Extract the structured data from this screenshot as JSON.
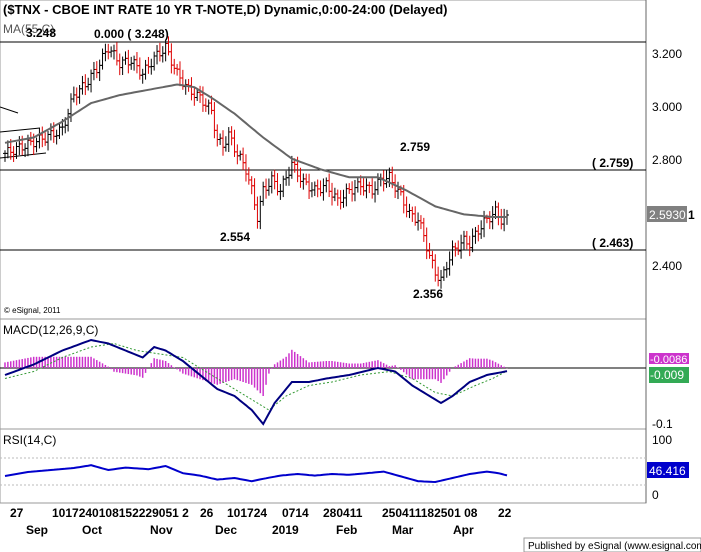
{
  "header": {
    "title": "($TNX - CBOE INT RATE 10 YR T-NOTE,D) Dynamic,0:00-24:00 (Delayed)",
    "ma_label": "MA(55,C)",
    "ma_value": "3.248"
  },
  "colors": {
    "up_bar": "#000000",
    "down_bar": "#dd0000",
    "ma_line": "#666666",
    "macd_line": "#000080",
    "signal_line": "#339933",
    "histogram": "#cc33cc",
    "rsi_line": "#0000cc",
    "price_tag_bg": "#808080",
    "macd_tag_bg": "#33aa55",
    "rsi_tag_bg": "#0000cc"
  },
  "annotations": {
    "top_label": "0.000 ( 3.248)",
    "high_2759": "2.759",
    "level_2759": "( 2.759)",
    "low_2554": "2.554",
    "level_2463": "( 2.463)",
    "low_2356": "2.356"
  },
  "price_axis": {
    "ticks": [
      "3.200",
      "3.000",
      "2.800",
      "2.400"
    ],
    "last_price": "2.5930",
    "last_price_suffix": "1"
  },
  "watermark": "© eSignal, 2011",
  "macd": {
    "label": "MACD(12,26,9,C)",
    "value_top": "-0.0086",
    "value": "-0.009",
    "tick": "-0.1"
  },
  "rsi": {
    "label": "RSI(14,C)",
    "value": "46.416",
    "tick_top": "100",
    "tick_bottom": "0"
  },
  "date_axis": {
    "days": [
      "27",
      "1017240108152229051 2",
      "26",
      "101724",
      "0714",
      "280411",
      "250411182501 08",
      "22"
    ],
    "months": [
      "Sep",
      "Oct",
      "Nov",
      "Dec",
      "2019",
      "Feb",
      "Mar",
      "Apr"
    ]
  },
  "footer": "Published by eSignal (www.esignal.com)",
  "chart_data": {
    "type": "ohlc",
    "title": "($TNX - CBOE INT RATE 10 YR T-NOTE,D) Dynamic,0:00-24:00 (Delayed)",
    "ylim": [
      2.2,
      3.33
    ],
    "horizontal_levels": [
      3.248,
      2.759,
      2.463
    ],
    "price_path": [
      [
        0,
        2.84
      ],
      [
        7,
        2.87
      ],
      [
        14,
        2.9
      ],
      [
        20,
        2.93
      ],
      [
        24,
        3.06
      ],
      [
        28,
        3.1
      ],
      [
        32,
        3.16
      ],
      [
        36,
        3.24
      ],
      [
        40,
        3.18
      ],
      [
        44,
        3.19
      ],
      [
        48,
        3.14
      ],
      [
        52,
        3.2
      ],
      [
        56,
        3.24
      ],
      [
        60,
        3.14
      ],
      [
        64,
        3.08
      ],
      [
        68,
        3.05
      ],
      [
        72,
        3.0
      ],
      [
        74,
        2.89
      ],
      [
        76,
        2.87
      ],
      [
        78,
        2.91
      ],
      [
        80,
        2.86
      ],
      [
        82,
        2.82
      ],
      [
        84,
        2.78
      ],
      [
        86,
        2.7
      ],
      [
        88,
        2.6
      ],
      [
        90,
        2.7
      ],
      [
        93,
        2.74
      ],
      [
        96,
        2.7
      ],
      [
        100,
        2.8
      ],
      [
        104,
        2.73
      ],
      [
        108,
        2.7
      ],
      [
        112,
        2.72
      ],
      [
        116,
        2.66
      ],
      [
        120,
        2.7
      ],
      [
        124,
        2.72
      ],
      [
        128,
        2.7
      ],
      [
        131,
        2.74
      ],
      [
        134,
        2.75
      ],
      [
        138,
        2.68
      ],
      [
        141,
        2.61
      ],
      [
        144,
        2.59
      ],
      [
        146,
        2.53
      ],
      [
        148,
        2.45
      ],
      [
        150,
        2.39
      ],
      [
        152,
        2.36
      ],
      [
        154,
        2.42
      ],
      [
        156,
        2.47
      ],
      [
        160,
        2.51
      ],
      [
        162,
        2.5
      ],
      [
        165,
        2.55
      ],
      [
        167,
        2.58
      ],
      [
        169,
        2.6
      ],
      [
        171,
        2.62
      ],
      [
        173,
        2.59
      ],
      [
        175,
        2.593
      ]
    ],
    "ma55_path": [
      [
        0,
        2.88
      ],
      [
        10,
        2.9
      ],
      [
        20,
        2.96
      ],
      [
        30,
        3.03
      ],
      [
        40,
        3.06
      ],
      [
        50,
        3.08
      ],
      [
        60,
        3.1
      ],
      [
        66,
        3.09
      ],
      [
        72,
        3.05
      ],
      [
        80,
        2.99
      ],
      [
        90,
        2.9
      ],
      [
        100,
        2.82
      ],
      [
        110,
        2.78
      ],
      [
        120,
        2.75
      ],
      [
        130,
        2.75
      ],
      [
        140,
        2.7
      ],
      [
        150,
        2.64
      ],
      [
        160,
        2.61
      ],
      [
        170,
        2.6
      ],
      [
        175,
        2.6
      ]
    ],
    "macd_path": [
      [
        0,
        -0.02
      ],
      [
        10,
        0.01
      ],
      [
        20,
        0.05
      ],
      [
        30,
        0.08
      ],
      [
        36,
        0.07
      ],
      [
        42,
        0.05
      ],
      [
        48,
        0.03
      ],
      [
        52,
        0.06
      ],
      [
        56,
        0.05
      ],
      [
        62,
        0.02
      ],
      [
        68,
        -0.02
      ],
      [
        74,
        -0.06
      ],
      [
        80,
        -0.08
      ],
      [
        86,
        -0.12
      ],
      [
        90,
        -0.16
      ],
      [
        94,
        -0.1
      ],
      [
        100,
        -0.04
      ],
      [
        106,
        -0.04
      ],
      [
        112,
        -0.03
      ],
      [
        120,
        -0.02
      ],
      [
        130,
        0.0
      ],
      [
        136,
        -0.01
      ],
      [
        142,
        -0.05
      ],
      [
        148,
        -0.08
      ],
      [
        152,
        -0.1
      ],
      [
        156,
        -0.08
      ],
      [
        162,
        -0.04
      ],
      [
        168,
        -0.02
      ],
      [
        175,
        -0.009
      ]
    ],
    "signal_path": [
      [
        0,
        -0.03
      ],
      [
        10,
        -0.01
      ],
      [
        20,
        0.03
      ],
      [
        30,
        0.06
      ],
      [
        38,
        0.07
      ],
      [
        46,
        0.05
      ],
      [
        54,
        0.04
      ],
      [
        62,
        0.03
      ],
      [
        70,
        -0.01
      ],
      [
        78,
        -0.05
      ],
      [
        86,
        -0.09
      ],
      [
        92,
        -0.12
      ],
      [
        98,
        -0.08
      ],
      [
        106,
        -0.05
      ],
      [
        114,
        -0.04
      ],
      [
        124,
        -0.02
      ],
      [
        134,
        -0.01
      ],
      [
        142,
        -0.03
      ],
      [
        150,
        -0.07
      ],
      [
        156,
        -0.08
      ],
      [
        164,
        -0.05
      ],
      [
        170,
        -0.03
      ],
      [
        175,
        -0.0086
      ]
    ],
    "rsi_path": [
      [
        0,
        45
      ],
      [
        8,
        55
      ],
      [
        16,
        60
      ],
      [
        24,
        65
      ],
      [
        30,
        72
      ],
      [
        36,
        60
      ],
      [
        42,
        66
      ],
      [
        50,
        62
      ],
      [
        56,
        70
      ],
      [
        62,
        52
      ],
      [
        68,
        46
      ],
      [
        74,
        36
      ],
      [
        80,
        40
      ],
      [
        86,
        32
      ],
      [
        90,
        38
      ],
      [
        96,
        46
      ],
      [
        102,
        50
      ],
      [
        108,
        46
      ],
      [
        114,
        50
      ],
      [
        120,
        48
      ],
      [
        126,
        52
      ],
      [
        132,
        56
      ],
      [
        138,
        44
      ],
      [
        144,
        32
      ],
      [
        150,
        30
      ],
      [
        156,
        40
      ],
      [
        162,
        50
      ],
      [
        168,
        56
      ],
      [
        172,
        52
      ],
      [
        175,
        46.416
      ]
    ],
    "x_count": 176
  }
}
